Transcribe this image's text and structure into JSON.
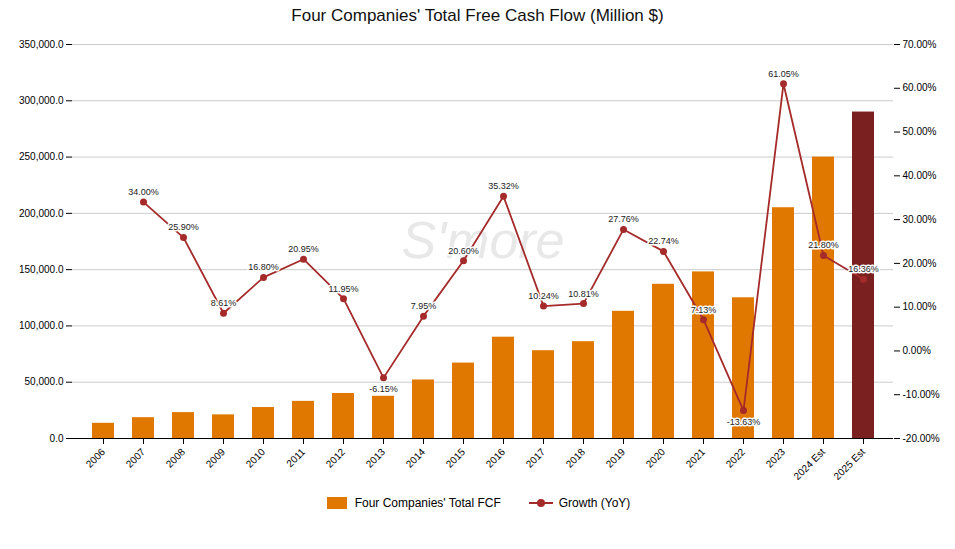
{
  "chart_data": {
    "type": "bar",
    "title": "Four Companies' Total Free Cash Flow (Million $)",
    "categories": [
      "2006",
      "2007",
      "2008",
      "2009",
      "2010",
      "2011",
      "2012",
      "2013",
      "2014",
      "2015",
      "2016",
      "2017",
      "2018",
      "2019",
      "2020",
      "2021",
      "2022",
      "2023",
      "2024 Est",
      "2025 Est"
    ],
    "series": [
      {
        "name": "Four Companies' Total FCF",
        "type": "bar",
        "values": [
          13500,
          18500,
          23000,
          21000,
          27500,
          33000,
          40000,
          37500,
          52000,
          67000,
          90000,
          78000,
          86000,
          113000,
          137000,
          148000,
          125000,
          205000,
          250000,
          290000
        ],
        "colors": [
          "#E07800",
          "#E07800",
          "#E07800",
          "#E07800",
          "#E07800",
          "#E07800",
          "#E07800",
          "#E07800",
          "#E07800",
          "#E07800",
          "#E07800",
          "#E07800",
          "#E07800",
          "#E07800",
          "#E07800",
          "#E07800",
          "#E07800",
          "#E07800",
          "#E07800",
          "#7B2020"
        ]
      },
      {
        "name": "Growth (YoY)",
        "type": "line",
        "axis": "y2",
        "color": "#A52A2A",
        "marker": "circle",
        "values": [
          null,
          34.0,
          25.9,
          8.61,
          16.8,
          20.95,
          11.95,
          -6.15,
          7.95,
          20.6,
          35.32,
          10.24,
          10.81,
          27.76,
          22.74,
          7.13,
          -13.63,
          61.05,
          21.8,
          16.36
        ],
        "value_labels": [
          null,
          "34.00%",
          "25.90%",
          "8.61%",
          "16.80%",
          "20.95%",
          "11.95%",
          "-6.15%",
          "7.95%",
          "20.60%",
          "35.32%",
          "10.24%",
          "10.81%",
          "27.76%",
          "22.74%",
          "7.13%",
          "-13.63%",
          "61.05%",
          "21.80%",
          "16.36%"
        ],
        "data_labels": true
      }
    ],
    "ylim": [
      0,
      350000
    ],
    "yticks": [
      {
        "value": 0,
        "label": "0.0"
      },
      {
        "value": 50000,
        "label": "50,000.0"
      },
      {
        "value": 100000,
        "label": "100,000.0"
      },
      {
        "value": 150000,
        "label": "150,000.0"
      },
      {
        "value": 200000,
        "label": "200,000.0"
      },
      {
        "value": 250000,
        "label": "250,000.0"
      },
      {
        "value": 300000,
        "label": "300,000.0"
      },
      {
        "value": 350000,
        "label": "350,000.0"
      }
    ],
    "y2lim": [
      -20,
      70
    ],
    "y2ticks": [
      {
        "value": -20,
        "label": "-20.00%"
      },
      {
        "value": -10,
        "label": "-10.00%"
      },
      {
        "value": 0,
        "label": "0.00%"
      },
      {
        "value": 10,
        "label": "10.00%"
      },
      {
        "value": 20,
        "label": "20.00%"
      },
      {
        "value": 30,
        "label": "30.00%"
      },
      {
        "value": 40,
        "label": "40.00%"
      },
      {
        "value": 50,
        "label": "50.00%"
      },
      {
        "value": 60,
        "label": "60.00%"
      },
      {
        "value": 70,
        "label": "70.00%"
      }
    ],
    "annotations": [
      "S'more"
    ],
    "grid": true,
    "legend": "bottom"
  }
}
